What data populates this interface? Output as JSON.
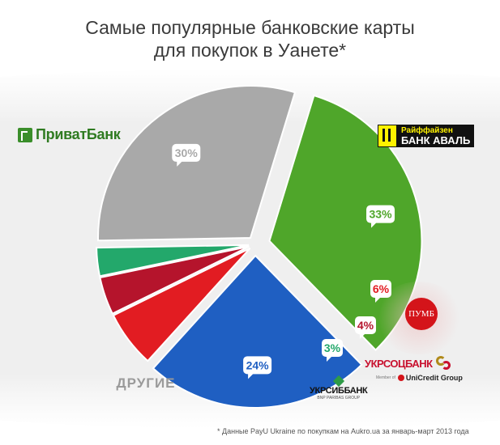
{
  "title_line1": "Самые популярные банковские карты",
  "title_line2": "для покупок в Уанете*",
  "footnote": "* Данные PayU Ukraine по покупкам на Aukro.ua за январь-март 2013 года",
  "logos": {
    "privat": "ПриватБанк",
    "raif_top": "Райффайзен",
    "raif_bottom": "БАНК АВАЛЬ",
    "pumb": "ПУМБ",
    "ukrsots": "УКРСОЦБАНК",
    "unicredit_member": "Member of",
    "unicredit": "UniCredit Group",
    "ukrsib": "УКРСИББАНК",
    "ukrsib_sub": "BNP PARIBAS GROUP"
  },
  "chart_data": {
    "type": "pie",
    "slices": [
      {
        "label": "ПриватБанк",
        "value": 33,
        "value_label": "33%",
        "color": "#4fa62a"
      },
      {
        "label": "Райффайзен Банк Аваль",
        "value": 24,
        "value_label": "24%",
        "color": "#1f5fc2"
      },
      {
        "label": "ПУМБ",
        "value": 6,
        "value_label": "6%",
        "color": "#e21c22"
      },
      {
        "label": "Укрсоцбанк",
        "value": 4,
        "value_label": "4%",
        "color": "#b5142c"
      },
      {
        "label": "Укрсиббанк",
        "value": 3,
        "value_label": "3%",
        "color": "#23a86b"
      },
      {
        "label": "ДРУГИЕ",
        "value": 30,
        "value_label": "30%",
        "color": "#a9a9a9"
      }
    ],
    "others_label": "ДРУГИЕ"
  }
}
